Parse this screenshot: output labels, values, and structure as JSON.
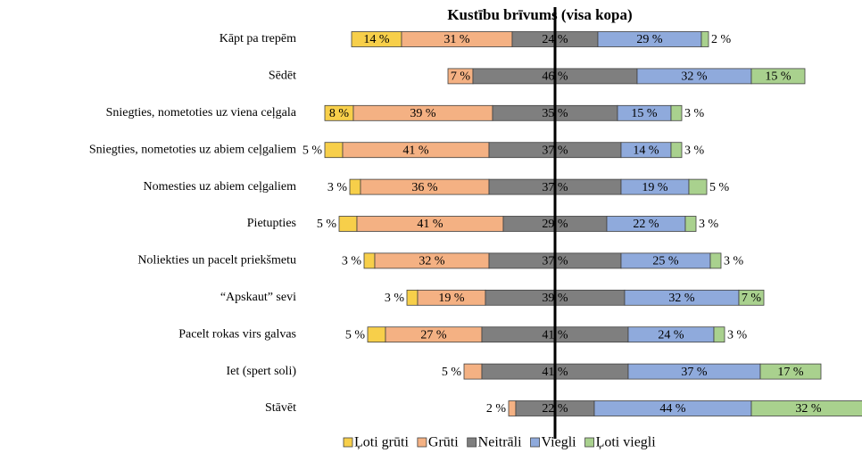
{
  "chart_data": {
    "type": "diverging-bar",
    "title": "Kustību brīvums (visa kopa)",
    "categories": [
      "Kāpt pa trepēm",
      "Sēdēt",
      "Sniegties, nometoties uz viena ceļgala",
      "Sniegties, nometoties uz abiem ceļgaliem",
      "Nomesties uz abiem ceļgaliem",
      "Pietupties",
      "Noliekties un pacelt priekšmetu",
      "“Apskaut” sevi",
      "Pacelt rokas virs galvas",
      "Iet (spert soli)",
      "Stāvēt"
    ],
    "series": [
      {
        "name": "Ļoti grūti",
        "color": "#f7cf4a",
        "values": [
          14,
          null,
          8,
          5,
          3,
          5,
          3,
          3,
          5,
          null,
          null
        ],
        "value_labels": [
          "14 %",
          null,
          "8 %",
          "5 %",
          "3 %",
          "5 %",
          "3 %",
          "3 %",
          "5 %",
          null,
          null
        ]
      },
      {
        "name": "Grūti",
        "color": "#f4b183",
        "values": [
          31,
          7,
          39,
          41,
          36,
          41,
          32,
          19,
          27,
          5,
          2
        ],
        "value_labels": [
          "31 %",
          "7 %",
          "39 %",
          "41 %",
          "36 %",
          "41 %",
          "32 %",
          "19 %",
          "27 %",
          "5 %",
          "2 %"
        ]
      },
      {
        "name": "Neitrāli",
        "color": "#7f7f7f",
        "values": [
          24,
          46,
          35,
          37,
          37,
          29,
          37,
          39,
          41,
          41,
          22
        ],
        "value_labels": [
          "24 %",
          "46 %",
          "35 %",
          "37 %",
          "37 %",
          "29 %",
          "37 %",
          "39 %",
          "41 %",
          "41 %",
          "22 %"
        ]
      },
      {
        "name": "Viegli",
        "color": "#8faadc",
        "values": [
          29,
          32,
          15,
          14,
          19,
          22,
          25,
          32,
          24,
          37,
          44
        ],
        "value_labels": [
          "29 %",
          "32 %",
          "15 %",
          "14 %",
          "19 %",
          "22 %",
          "25 %",
          "32 %",
          "24 %",
          "37 %",
          "44 %"
        ]
      },
      {
        "name": "Ļoti viegli",
        "color": "#a9d18e",
        "values": [
          2,
          15,
          3,
          3,
          5,
          3,
          3,
          7,
          3,
          17,
          32
        ],
        "value_labels": [
          "2 %",
          "15 %",
          "3 %",
          "3 %",
          "5 %",
          "3 %",
          "3 %",
          "7 %",
          "3 %",
          "17 %",
          "32 %"
        ]
      }
    ]
  }
}
